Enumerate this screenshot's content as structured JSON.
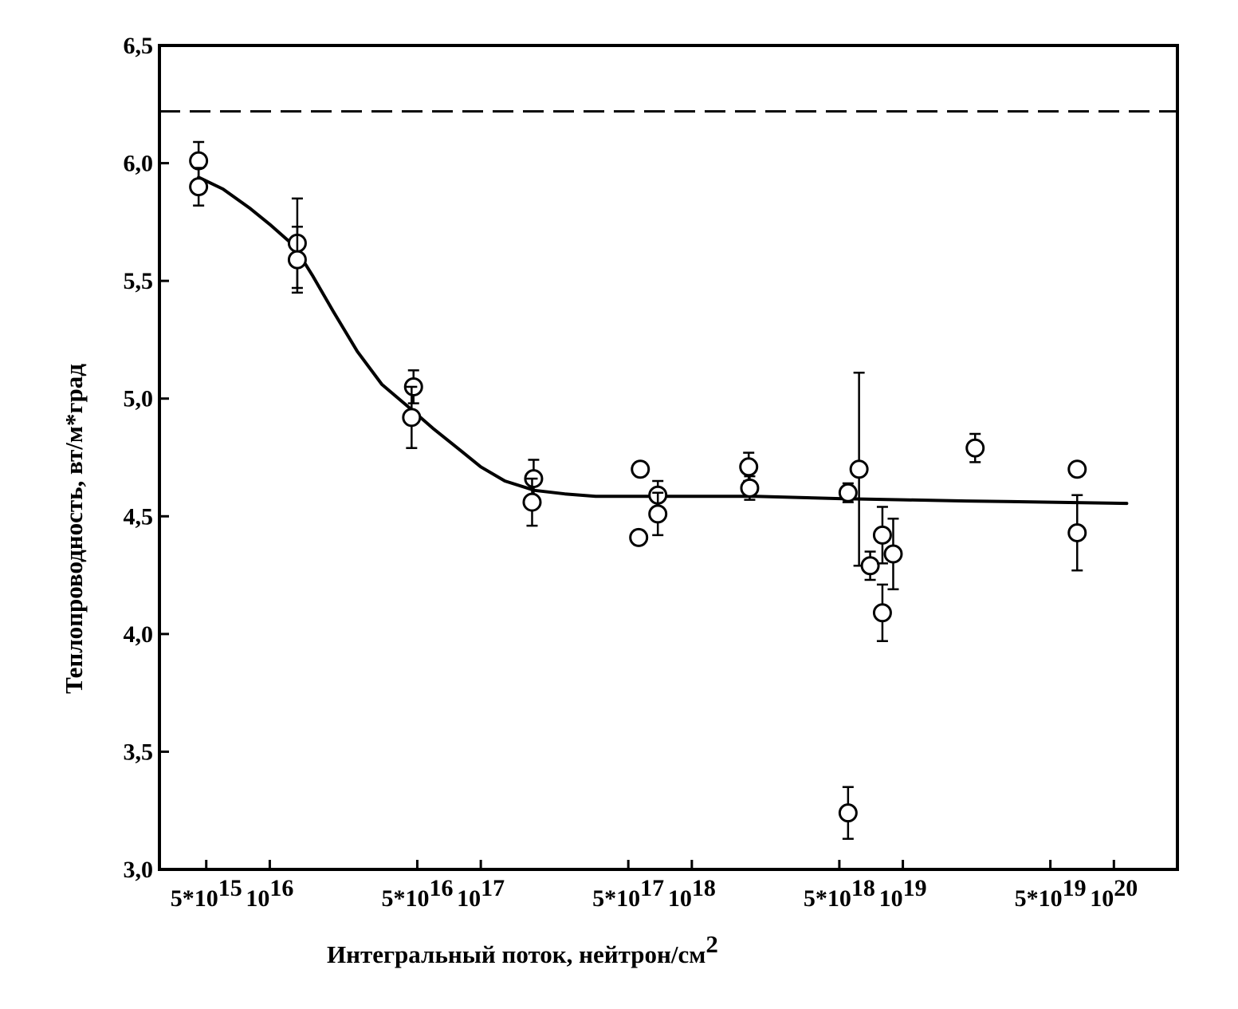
{
  "chart_data": {
    "type": "scatter",
    "title": "",
    "xlabel": "Интегральный поток, нейтрон/см",
    "xlabel_sup": "2",
    "ylabel": "Теплопроводность, вт/м*град",
    "x_scale": "log",
    "xlim": [
      3000000000000000.0,
      2e+20
    ],
    "ylim": [
      3.0,
      6.5
    ],
    "grid": false,
    "legend": "none",
    "y_ticks": [
      {
        "value": 3.0,
        "label": "3,0"
      },
      {
        "value": 3.5,
        "label": "3,5"
      },
      {
        "value": 4.0,
        "label": "4,0"
      },
      {
        "value": 4.5,
        "label": "4,5"
      },
      {
        "value": 5.0,
        "label": "5,0"
      },
      {
        "value": 5.5,
        "label": "5,5"
      },
      {
        "value": 6.0,
        "label": "6,0"
      },
      {
        "value": 6.5,
        "label": "6,5"
      }
    ],
    "x_ticks": [
      {
        "value": 5000000000000000.0,
        "base": "5*10",
        "exp": "15"
      },
      {
        "value": 1e+16,
        "base": "10",
        "exp": "16"
      },
      {
        "value": 5e+16,
        "base": "5*10",
        "exp": "16"
      },
      {
        "value": 1e+17,
        "base": "10",
        "exp": "17"
      },
      {
        "value": 5e+17,
        "base": "5*10",
        "exp": "17"
      },
      {
        "value": 1e+18,
        "base": "10",
        "exp": "18"
      },
      {
        "value": 5e+18,
        "base": "5*10",
        "exp": "18"
      },
      {
        "value": 1e+19,
        "base": "10",
        "exp": "19"
      },
      {
        "value": 5e+19,
        "base": "5*10",
        "exp": "19"
      },
      {
        "value": 1e+20,
        "base": "10",
        "exp": "20"
      }
    ],
    "reference_line": {
      "y": 6.22,
      "style": "dashed"
    },
    "points": [
      {
        "x": 4600000000000000.0,
        "y": 6.01,
        "err": 0.08
      },
      {
        "x": 4600000000000000.0,
        "y": 5.9,
        "err": 0.08
      },
      {
        "x": 1.35e+16,
        "y": 5.66,
        "err": 0.19
      },
      {
        "x": 1.35e+16,
        "y": 5.59,
        "err": 0.14
      },
      {
        "x": 4.8e+16,
        "y": 5.05,
        "err": 0.07
      },
      {
        "x": 4.7e+16,
        "y": 4.92,
        "err": 0.13
      },
      {
        "x": 1.78e+17,
        "y": 4.66,
        "err": 0.08
      },
      {
        "x": 1.75e+17,
        "y": 4.56,
        "err": 0.1
      },
      {
        "x": 5.7e+17,
        "y": 4.7,
        "err": 0.03
      },
      {
        "x": 5.6e+17,
        "y": 4.41,
        "err": 0.03
      },
      {
        "x": 6.9e+17,
        "y": 4.59,
        "err": 0.06
      },
      {
        "x": 6.9e+17,
        "y": 4.51,
        "err": 0.09
      },
      {
        "x": 1.86e+18,
        "y": 4.71,
        "err": 0.06
      },
      {
        "x": 1.88e+18,
        "y": 4.62,
        "err": 0.05
      },
      {
        "x": 5.5e+18,
        "y": 4.6,
        "err": 0.04
      },
      {
        "x": 6.2e+18,
        "y": 4.7,
        "err": 0.41
      },
      {
        "x": 7e+18,
        "y": 4.29,
        "err": 0.06
      },
      {
        "x": 8e+18,
        "y": 4.42,
        "err": 0.12
      },
      {
        "x": 9e+18,
        "y": 4.34,
        "err": 0.15
      },
      {
        "x": 8e+18,
        "y": 4.09,
        "err": 0.12
      },
      {
        "x": 5.5e+18,
        "y": 3.24,
        "err": 0.11
      },
      {
        "x": 2.2e+19,
        "y": 4.79,
        "err": 0.06
      },
      {
        "x": 6.7e+19,
        "y": 4.7,
        "err": 0.03
      },
      {
        "x": 6.7e+19,
        "y": 4.43,
        "err": 0.16
      }
    ],
    "fit_curve": [
      [
        4600000000000000.0,
        5.94
      ],
      [
        6000000000000000.0,
        5.89
      ],
      [
        8000000000000000.0,
        5.81
      ],
      [
        1e+16,
        5.74
      ],
      [
        1.3e+16,
        5.65
      ],
      [
        1.6e+16,
        5.52
      ],
      [
        2e+16,
        5.37
      ],
      [
        2.6e+16,
        5.2
      ],
      [
        3.4e+16,
        5.06
      ],
      [
        4.6e+16,
        4.96
      ],
      [
        6e+16,
        4.87
      ],
      [
        8e+16,
        4.78
      ],
      [
        1e+17,
        4.71
      ],
      [
        1.3e+17,
        4.65
      ],
      [
        1.8e+17,
        4.61
      ],
      [
        2.5e+17,
        4.595
      ],
      [
        3.5e+17,
        4.585
      ],
      [
        5e+17,
        4.585
      ],
      [
        1e+18,
        4.585
      ],
      [
        2e+18,
        4.585
      ],
      [
        5e+18,
        4.575
      ],
      [
        1e+19,
        4.57
      ],
      [
        2e+19,
        4.565
      ],
      [
        5e+19,
        4.56
      ],
      [
        1.15e+20,
        4.555
      ]
    ]
  }
}
